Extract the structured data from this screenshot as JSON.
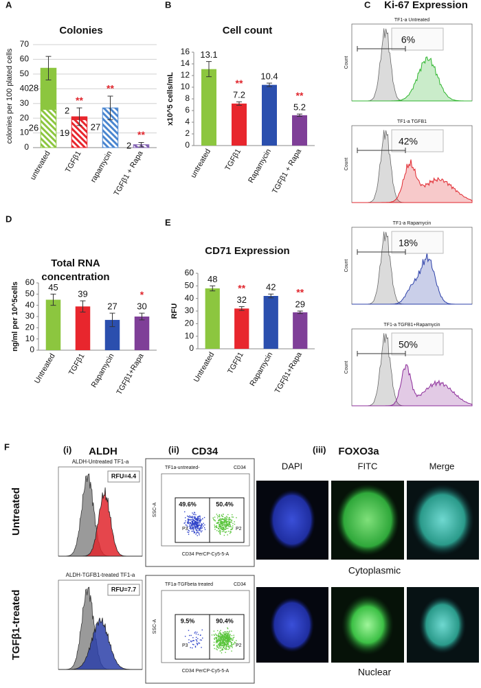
{
  "chart_data": [
    {
      "type": "bar",
      "panel": "A",
      "title": "Colonies",
      "y_label": "colonies per 100 plated cells",
      "categories": [
        "untreated",
        "TGFβ1",
        "rapamycin",
        "TGFβ1 + Rapa"
      ],
      "colors": [
        "#8cc63f",
        "#e8262d",
        "#4a86d0",
        "#7f5fb0"
      ],
      "series": [
        {
          "pattern": "hatched",
          "values": [
            26,
            19,
            27,
            2
          ]
        },
        {
          "pattern": "solid",
          "values": [
            28,
            2,
            null,
            null
          ]
        }
      ],
      "errors": [
        8,
        6,
        8,
        1.5
      ],
      "annotations": [
        null,
        "**",
        "**",
        "**"
      ],
      "label_position": "left",
      "ylim": [
        0,
        70
      ],
      "yticks": [
        0,
        10,
        20,
        30,
        40,
        50,
        60,
        70
      ],
      "grid": true
    },
    {
      "type": "bar",
      "panel": "B",
      "title": "Cell count",
      "y_label": "x10^5 cells/mL",
      "categories": [
        "untreated",
        "TGFβ1",
        "Rapamycin",
        "TGFβ1 + Rapa"
      ],
      "colors": [
        "#8cc63f",
        "#e8262d",
        "#2b4fae",
        "#7f3f98"
      ],
      "values": [
        13.1,
        7.2,
        10.4,
        5.2
      ],
      "errors": [
        1.3,
        0.3,
        0.3,
        0.2
      ],
      "annotations": [
        null,
        "**",
        null,
        "**"
      ],
      "label_position": "above",
      "ylim": [
        0,
        16
      ],
      "yticks": [
        0,
        2,
        4,
        6,
        8,
        10,
        12,
        14,
        16
      ],
      "grid": false
    },
    {
      "type": "bar",
      "panel": "D",
      "title": [
        "Total RNA",
        "concentration"
      ],
      "y_label": "ng/ml per 10^5cells",
      "categories": [
        "Untreated",
        "TGFβ1",
        "Rapamycin",
        "TGFβ1+Rapa"
      ],
      "colors": [
        "#8cc63f",
        "#e8262d",
        "#2b4fae",
        "#7f3f98"
      ],
      "values": [
        45,
        39,
        27,
        30
      ],
      "errors": [
        5,
        5,
        6,
        3
      ],
      "annotations": [
        null,
        null,
        null,
        "*"
      ],
      "label_position": "above",
      "ylim": [
        0,
        60
      ],
      "yticks": [
        0,
        10,
        20,
        30,
        40,
        50,
        60
      ],
      "grid": false
    },
    {
      "type": "bar",
      "panel": "E",
      "title": "CD71 Expression",
      "y_label": "RFU",
      "categories": [
        "Untreated",
        "TGFβ1",
        "Rapamycin",
        "TGFβ1+Rapa"
      ],
      "colors": [
        "#8cc63f",
        "#e8262d",
        "#2b4fae",
        "#7f3f98"
      ],
      "values": [
        48,
        32,
        42,
        29
      ],
      "errors": [
        2,
        1.5,
        1.5,
        1
      ],
      "annotations": [
        null,
        "**",
        null,
        "**"
      ],
      "label_position": "above",
      "ylim": [
        0,
        60
      ],
      "yticks": [
        0,
        10,
        20,
        30,
        40,
        50,
        60
      ],
      "grid": false
    }
  ],
  "panel_c": {
    "letter": "C",
    "title": "Ki-67 Expression",
    "y_label": "Count",
    "plots": [
      {
        "title": "TF1-a Untreated",
        "percent": "6%",
        "color": "#2db52d"
      },
      {
        "title": "TF1-a TGFB1",
        "percent": "42%",
        "color": "#e0262d"
      },
      {
        "title": "TF1-a Rapamycin",
        "percent": "18%",
        "color": "#2b3fa8"
      },
      {
        "title": "TF1-a TGFB1+Rapamycin",
        "percent": "50%",
        "color": "#8b2b99"
      }
    ]
  },
  "panel_f": {
    "letter": "F",
    "rows": [
      "Untreated",
      "TGFβ1-treated"
    ],
    "aldh": {
      "number": "(i)",
      "title": "ALDH",
      "plots": [
        {
          "title": "ALDH-Untreated TF1-a",
          "rfu": "RFU=4.4",
          "color": "#e0262d"
        },
        {
          "title": "ALDH-TGFB1-treated TF1-a",
          "rfu": "RFU=7.7",
          "color": "#2b3fa8"
        }
      ]
    },
    "cd34": {
      "number": "(ii)",
      "title": "CD34",
      "x_label": "CD34 PerCP-Cy5-5-A",
      "y_label": "SSC-A",
      "plots": [
        {
          "title": "TF1a-untreated-",
          "marker": "CD34",
          "left": "49.6%",
          "right": "50.4%",
          "left_gate": "P3",
          "right_gate": "P2"
        },
        {
          "title": "TF1a-TGFbeta treated",
          "marker": "CD34",
          "left": "9.5%",
          "right": "90.4%",
          "left_gate": "P3",
          "right_gate": "P2"
        }
      ]
    },
    "foxo3a": {
      "number": "(iii)",
      "title": "FOXO3a",
      "columns": [
        "DAPI",
        "FITC",
        "Merge"
      ],
      "captions": [
        "Cytoplasmic",
        "Nuclear"
      ]
    }
  }
}
